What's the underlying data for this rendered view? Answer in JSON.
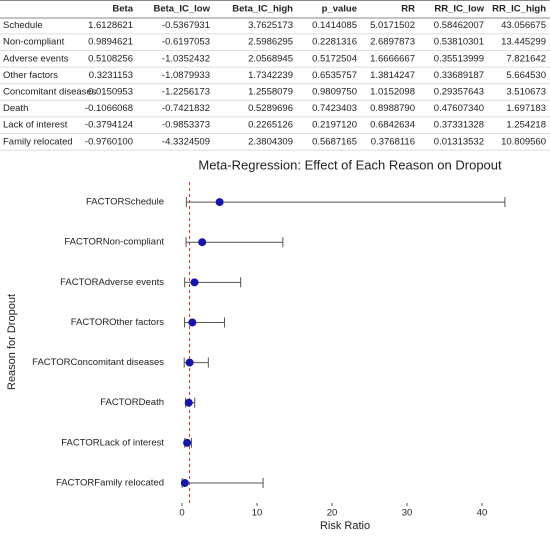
{
  "table": {
    "header": [
      "Beta",
      "Beta_IC_low",
      "Beta_IC_high",
      "p_value",
      "RR",
      "RR_IC_low",
      "RR_IC_high"
    ],
    "rows": [
      [
        "Schedule",
        "1.6128621",
        "-0.5367931",
        "3.7625173",
        "0.1414085",
        "5.0171502",
        "0.58462007",
        "43.056675"
      ],
      [
        "Non-compliant",
        "0.9894621",
        "-0.6197053",
        "2.5986295",
        "0.2281316",
        "2.6897873",
        "0.53810301",
        "13.445299"
      ],
      [
        "Adverse events",
        "0.5108256",
        "-1.0352432",
        "2.0568945",
        "0.5172504",
        "1.6666667",
        "0.35513999",
        "7.821642"
      ],
      [
        "Other factors",
        "0.3231153",
        "-1.0879933",
        "1.7342239",
        "0.6535757",
        "1.3814247",
        "0.33689187",
        "5.664530"
      ],
      [
        "Concomitant diseases",
        "0.0150953",
        "-1.2256173",
        "1.2558079",
        "0.9809750",
        "1.0152098",
        "0.29357643",
        "3.510673"
      ],
      [
        "Death",
        "-0.1066068",
        "-0.7421832",
        "0.5289696",
        "0.7423403",
        "0.8988790",
        "0.47607340",
        "1.697183"
      ],
      [
        "Lack of interest",
        "-0.3794124",
        "-0.9853373",
        "0.2265126",
        "0.2197120",
        "0.6842634",
        "0.37331328",
        "1.254218"
      ],
      [
        "Family relocated",
        "-0.9760100",
        "-4.3324509",
        "2.3804309",
        "0.5687165",
        "0.3768116",
        "0.01313532",
        "10.809560"
      ]
    ]
  },
  "chart_data": {
    "type": "forest",
    "title": "Meta-Regression: Effect of Each Reason on Dropout",
    "x_label": "Risk Ratio",
    "y_label": "Reason for Dropout",
    "categories": [
      "FACTORSchedule",
      "FACTORNon-compliant",
      "FACTORAdverse events",
      "FACTOROther factors",
      "FACTORConcomitant diseases",
      "FACTORDeath",
      "FACTORLack of interest",
      "FACTORFamily relocated"
    ],
    "values": [
      5.0171502,
      2.6897873,
      1.6666667,
      1.3814247,
      1.0152098,
      0.898879,
      0.6842634,
      0.3768116
    ],
    "low": [
      0.58462007,
      0.53810301,
      0.35513999,
      0.33689187,
      0.29357643,
      0.4760734,
      0.37331328,
      0.01313532
    ],
    "high": [
      43.056675,
      13.445299,
      7.821642,
      5.66453,
      3.510673,
      1.697183,
      1.254218,
      10.80956
    ],
    "color": "#1515a8",
    "error_color": "#555555",
    "reference_line": 1,
    "reference_color": "#e03030",
    "xlim": [
      -1.6,
      44.4
    ],
    "xticks": [
      0,
      10,
      20,
      30,
      40
    ]
  }
}
